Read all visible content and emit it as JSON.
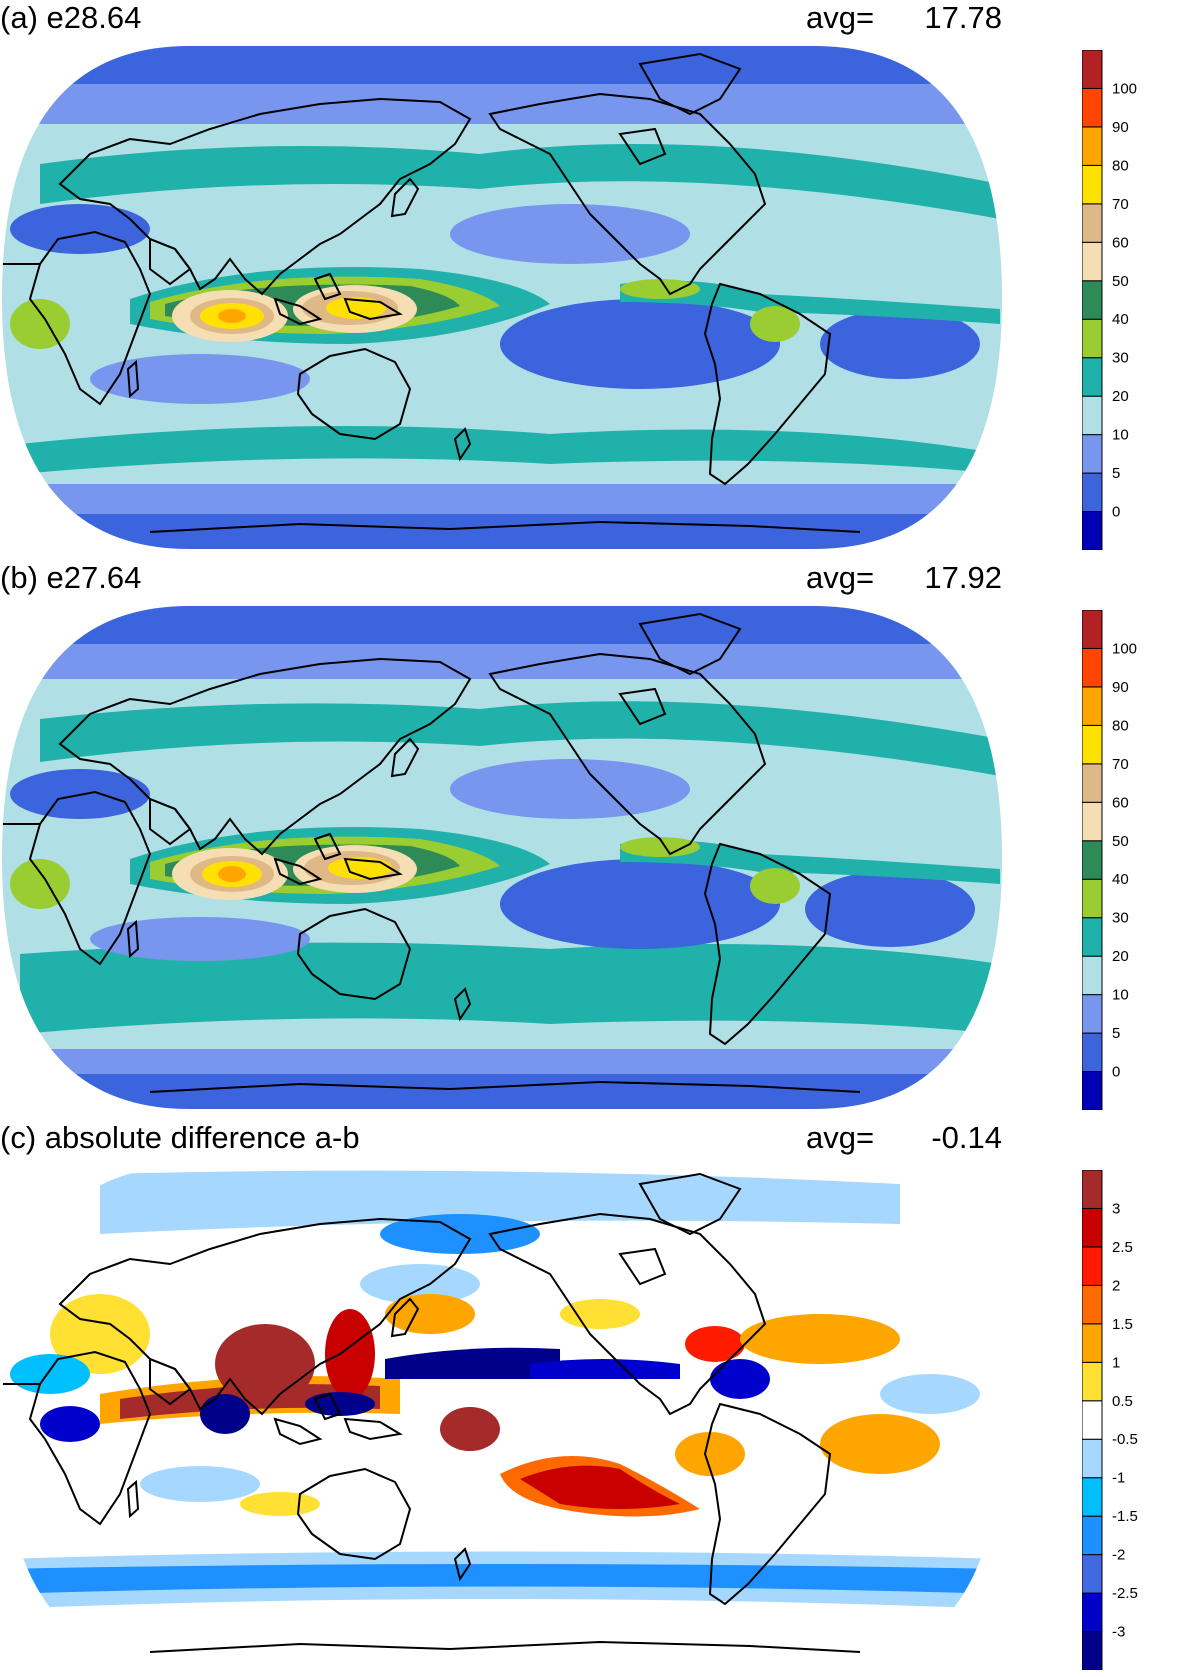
{
  "panels": [
    {
      "id": "a",
      "title": "(a) e28.64",
      "avg_label": "avg=",
      "avg_value": "17.78",
      "colorbar": {
        "colors": [
          "#0000b4",
          "#3c64dc",
          "#7896ee",
          "#b0e0e6",
          "#20b2aa",
          "#9acd32",
          "#2e8b57",
          "#f5deb3",
          "#deb887",
          "#ffe000",
          "#ffa500",
          "#ff4500",
          "#b22222"
        ],
        "labels": [
          "0",
          "5",
          "10",
          "20",
          "30",
          "40",
          "50",
          "60",
          "70",
          "80",
          "90",
          "100"
        ]
      }
    },
    {
      "id": "b",
      "title": "(b) e27.64",
      "avg_label": "avg=",
      "avg_value": "17.92",
      "colorbar": {
        "colors": [
          "#0000b4",
          "#3c64dc",
          "#7896ee",
          "#b0e0e6",
          "#20b2aa",
          "#9acd32",
          "#2e8b57",
          "#f5deb3",
          "#deb887",
          "#ffe000",
          "#ffa500",
          "#ff4500",
          "#b22222"
        ],
        "labels": [
          "0",
          "5",
          "10",
          "20",
          "30",
          "40",
          "50",
          "60",
          "70",
          "80",
          "90",
          "100"
        ]
      }
    },
    {
      "id": "c",
      "title": "(c) absolute difference a-b",
      "avg_label": "avg=",
      "avg_value": "-0.14",
      "colorbar": {
        "colors": [
          "#00008b",
          "#0000cd",
          "#4169e1",
          "#1e90ff",
          "#00bfff",
          "#a6d8ff",
          "#ffffff",
          "#ffe033",
          "#ffa500",
          "#ff6a00",
          "#ff1a00",
          "#c80000",
          "#a52a2a"
        ],
        "labels": [
          "-3",
          "-2.5",
          "-2",
          "-1.5",
          "-1",
          "-0.5",
          "0.5",
          "1",
          "1.5",
          "2",
          "2.5",
          "3"
        ]
      }
    }
  ],
  "map_colors": {
    "a_b": {
      "ocean_base": "#b0e0e6",
      "low": "#3c64dc",
      "low2": "#7896ee",
      "mid": "#20b2aa",
      "green": "#9acd32",
      "dkgreen": "#2e8b57",
      "wheat": "#f5deb3",
      "tan": "#deb887",
      "yellow": "#ffe000",
      "orange": "#ffa500"
    },
    "c": {
      "white": "#ffffff",
      "lightblue": "#a6d8ff",
      "blue": "#1e90ff",
      "dkblue": "#0000cd",
      "navy": "#00008b",
      "yellow": "#ffe033",
      "orange": "#ffa500",
      "red": "#ff1a00",
      "brown": "#a52a2a"
    }
  }
}
